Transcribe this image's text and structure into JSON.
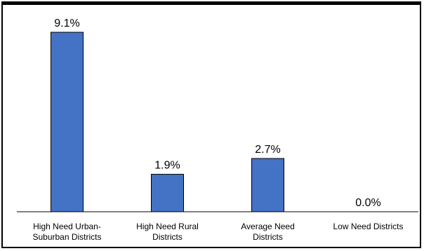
{
  "chart_data": {
    "type": "bar",
    "categories": [
      [
        "High Need Urban-",
        "Suburban Districts"
      ],
      [
        "High Need Rural",
        "Districts"
      ],
      [
        "Average Need",
        "Districts"
      ],
      [
        "Low Need Districts"
      ]
    ],
    "values": [
      9.1,
      1.9,
      2.7,
      0.0
    ],
    "data_labels": [
      "9.1%",
      "1.9%",
      "2.7%",
      "0.0%"
    ],
    "ylim": [
      0,
      9.1
    ],
    "grid": false,
    "colors": {
      "bar_fill": "#4472C4",
      "bar_stroke": "#000000",
      "axis": "#000000"
    }
  }
}
